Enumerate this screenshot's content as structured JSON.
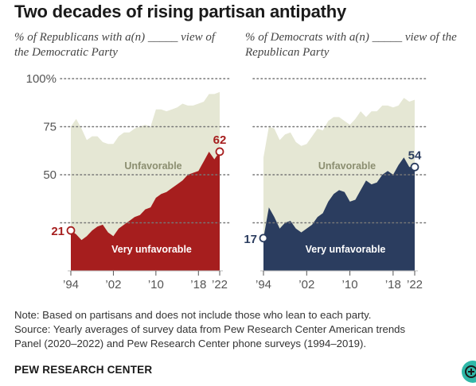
{
  "title": "Two decades of rising partisan antipathy",
  "note_lines": [
    "Note: Based on partisans and does not include those who lean to each party.",
    "Source: Yearly averages of survey data from Pew Research Center American trends",
    "Panel (2020–2022) and Pew Research Center phone surveys (1994–2019)."
  ],
  "org": "PEW RESEARCH CENTER",
  "colors": {
    "unfavorable_area": "#e5e7d4",
    "rep_very": "#a61e1e",
    "dem_very": "#2b3d5f",
    "label_unfav": "#8b8e70"
  },
  "chart_data": [
    {
      "type": "area",
      "subtitle": "% of Republicans with a(n) _____ view of the Democratic Party",
      "x_tick_labels": [
        "’94",
        "’02",
        "’10",
        "’18",
        "’22"
      ],
      "x_ticks": [
        1994,
        2002,
        2010,
        2018,
        2022
      ],
      "y_tick_labels": [
        "100%",
        "75",
        "50"
      ],
      "y_ticks": [
        100,
        75,
        50
      ],
      "ylim": [
        0,
        100
      ],
      "gridlines": [
        100,
        75,
        50,
        25
      ],
      "series": [
        {
          "name": "Unfavorable",
          "x": [
            1994,
            1995,
            1996,
            1997,
            1998,
            1999,
            2000,
            2001,
            2002,
            2003,
            2004,
            2005,
            2006,
            2007,
            2008,
            2009,
            2010,
            2011,
            2012,
            2013,
            2014,
            2015,
            2016,
            2017,
            2018,
            2019,
            2020,
            2021,
            2022
          ],
          "values": [
            75,
            79,
            74,
            68,
            70,
            70,
            67,
            66,
            66,
            70,
            72,
            72,
            74,
            75,
            76,
            75,
            84,
            84,
            83,
            84,
            85,
            87,
            86,
            86,
            87,
            88,
            92,
            92,
            93
          ]
        },
        {
          "name": "Very unfavorable",
          "x": [
            1994,
            1995,
            1996,
            1997,
            1998,
            1999,
            2000,
            2001,
            2002,
            2003,
            2004,
            2005,
            2006,
            2007,
            2008,
            2009,
            2010,
            2011,
            2012,
            2013,
            2014,
            2015,
            2016,
            2017,
            2018,
            2019,
            2020,
            2021,
            2022
          ],
          "values": [
            21,
            19,
            16,
            18,
            21,
            23,
            24,
            20,
            18,
            22,
            24,
            26,
            28,
            29,
            32,
            33,
            38,
            40,
            41,
            43,
            45,
            47,
            50,
            51,
            52,
            57,
            62,
            58,
            62
          ]
        }
      ],
      "start_label": "21",
      "end_label": "62"
    },
    {
      "type": "area",
      "subtitle": "% of Democrats with a(n) _____ view of the Republican Party",
      "x_tick_labels": [
        "’94",
        "’02",
        "’10",
        "’18",
        "’22"
      ],
      "x_ticks": [
        1994,
        2002,
        2010,
        2018,
        2022
      ],
      "ylim": [
        0,
        100
      ],
      "gridlines": [
        100,
        75,
        50,
        25
      ],
      "series": [
        {
          "name": "Unfavorable",
          "x": [
            1994,
            1995,
            1996,
            1997,
            1998,
            1999,
            2000,
            2001,
            2002,
            2003,
            2004,
            2005,
            2006,
            2007,
            2008,
            2009,
            2010,
            2011,
            2012,
            2013,
            2014,
            2015,
            2016,
            2017,
            2018,
            2019,
            2020,
            2021,
            2022
          ],
          "values": [
            59,
            75,
            74,
            68,
            71,
            72,
            67,
            65,
            66,
            70,
            74,
            73,
            78,
            80,
            80,
            78,
            76,
            79,
            83,
            80,
            83,
            83,
            86,
            86,
            85,
            86,
            90,
            88,
            89
          ]
        },
        {
          "name": "Very unfavorable",
          "x": [
            1994,
            1995,
            1996,
            1997,
            1998,
            1999,
            2000,
            2001,
            2002,
            2003,
            2004,
            2005,
            2006,
            2007,
            2008,
            2009,
            2010,
            2011,
            2012,
            2013,
            2014,
            2015,
            2016,
            2017,
            2018,
            2019,
            2020,
            2021,
            2022
          ],
          "values": [
            17,
            33,
            28,
            22,
            25,
            26,
            22,
            20,
            22,
            24,
            28,
            30,
            36,
            40,
            42,
            41,
            36,
            37,
            42,
            47,
            45,
            46,
            50,
            52,
            50,
            55,
            59,
            54,
            54
          ]
        }
      ],
      "start_label": "17",
      "end_label": "54"
    }
  ],
  "area_labels": {
    "unfavorable": "Unfavorable",
    "very_unfavorable": "Very unfavorable"
  }
}
